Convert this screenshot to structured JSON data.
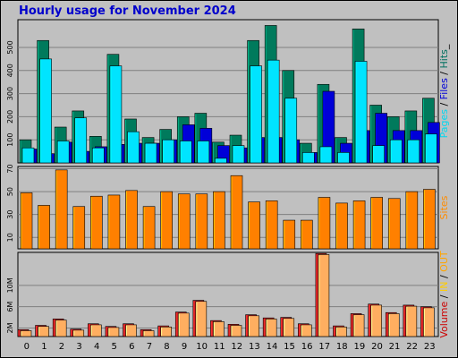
{
  "chart_data": {
    "type": "bar",
    "title": "Hourly usage for November 2024",
    "categories": [
      "0",
      "1",
      "2",
      "3",
      "4",
      "5",
      "6",
      "7",
      "8",
      "9",
      "10",
      "11",
      "12",
      "13",
      "14",
      "15",
      "16",
      "17",
      "18",
      "19",
      "20",
      "21",
      "22",
      "23"
    ],
    "panels": [
      {
        "name": "pages-files-hits",
        "type": "bar",
        "ylabel_parts": [
          "Pages",
          " / ",
          "Files",
          " / ",
          "Hits",
          "_"
        ],
        "ylabel_colors": [
          "#00d8f0",
          "#000000",
          "#0000d8",
          "#000000",
          "#007060",
          "#000000"
        ],
        "yticks": [
          100,
          200,
          300,
          400,
          500
        ],
        "ylim": [
          0,
          620
        ],
        "series": [
          {
            "name": "Hits",
            "color": "#007a5c",
            "values": [
              100,
              530,
              155,
              225,
              115,
              470,
              190,
              110,
              145,
              200,
              215,
              90,
              120,
              530,
              595,
              400,
              85,
              340,
              110,
              580,
              250,
              200,
              225,
              280
            ]
          },
          {
            "name": "Files",
            "color": "#0000d8",
            "values": [
              60,
              40,
              90,
              50,
              70,
              80,
              85,
              85,
              100,
              165,
              150,
              75,
              65,
              110,
              110,
              100,
              45,
              310,
              85,
              140,
              215,
              140,
              140,
              175
            ]
          },
          {
            "name": "Pages",
            "color": "#00e4ff",
            "values": [
              65,
              450,
              95,
              195,
              65,
              420,
              135,
              85,
              100,
              95,
              95,
              20,
              75,
              420,
              445,
              280,
              45,
              70,
              45,
              440,
              75,
              100,
              100,
              125
            ]
          }
        ]
      },
      {
        "name": "sites",
        "type": "bar",
        "ylabel_parts": [
          "Sites"
        ],
        "ylabel_colors": [
          "#ff8c00"
        ],
        "yticks": [
          10,
          30,
          50,
          70
        ],
        "ylim": [
          0,
          72
        ],
        "series": [
          {
            "name": "Sites",
            "color": "#ff8000",
            "values": [
              49,
              38,
              69,
              37,
              46,
              47,
              51,
              37,
              50,
              48,
              48,
              50,
              64,
              41,
              42,
              25,
              25,
              45,
              40,
              42,
              45,
              44,
              50,
              52
            ]
          }
        ]
      },
      {
        "name": "volume",
        "type": "bar",
        "ylabel_parts": [
          "Volume",
          " / ",
          "IN",
          " / ",
          "OUT"
        ],
        "ylabel_colors": [
          "#cc0000",
          "#000000",
          "#ffcc00",
          "#000000",
          "#ffa500"
        ],
        "yticks_labels": [
          "2M",
          "6M",
          "10M"
        ],
        "yticks_values": [
          1.6,
          5.6,
          9.6
        ],
        "ylim": [
          0,
          15.8
        ],
        "series": [
          {
            "name": "Volume",
            "color": "#d02020",
            "values": [
              1.3,
              2.1,
              3.3,
              1.4,
              2.4,
              1.9,
              2.4,
              1.3,
              2.0,
              4.6,
              6.8,
              3.0,
              2.3,
              4.1,
              3.5,
              3.6,
              2.4,
              15.6,
              2.0,
              4.3,
              6.1,
              4.5,
              5.9,
              5.6
            ]
          },
          {
            "name": "OUT",
            "color": "#ffae60",
            "values": [
              1.1,
              1.9,
              3.1,
              1.2,
              2.2,
              1.7,
              2.2,
              1.1,
              1.8,
              4.4,
              6.6,
              2.8,
              2.1,
              3.9,
              3.3,
              3.4,
              2.2,
              15.4,
              1.8,
              4.1,
              5.9,
              4.3,
              5.7,
              5.4
            ]
          }
        ]
      }
    ]
  }
}
